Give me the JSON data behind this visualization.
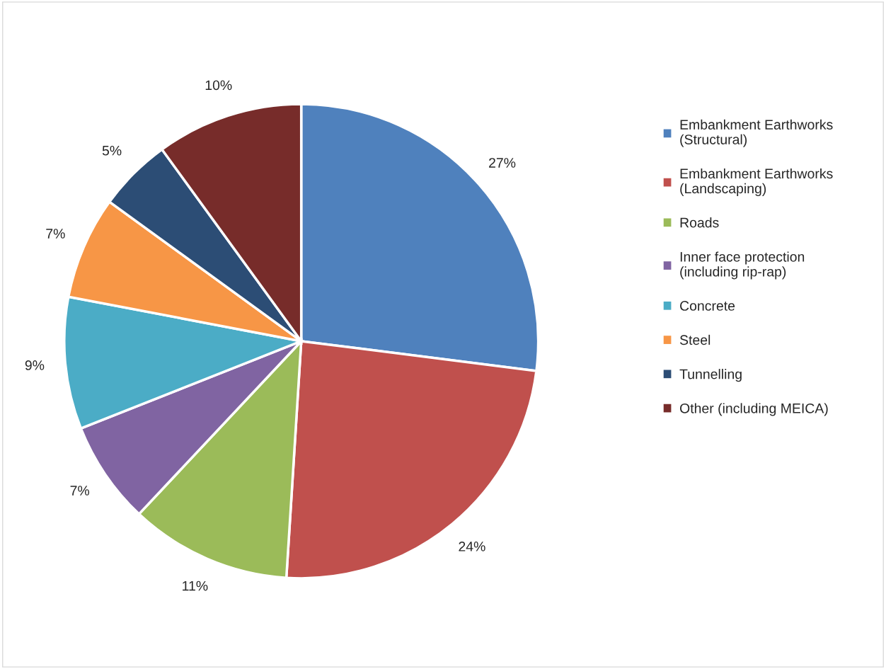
{
  "chart_data": {
    "type": "pie",
    "categories": [
      "Embankment Earthworks (Structural)",
      "Embankment Earthworks (Landscaping)",
      "Roads",
      "Inner face protection (including rip-rap)",
      "Concrete",
      "Steel",
      "Tunnelling",
      "Other (including MEICA)"
    ],
    "values": [
      27,
      24,
      11,
      7,
      9,
      7,
      5,
      10
    ],
    "colors": [
      "#4f81bd",
      "#c0504d",
      "#9bbb59",
      "#8064a2",
      "#4bacc6",
      "#f79646",
      "#2c4d75",
      "#772c2a"
    ],
    "value_labels": [
      "27%",
      "24%",
      "11%",
      "7%",
      "9%",
      "7%",
      "5%",
      "10%"
    ],
    "legend": "right"
  }
}
